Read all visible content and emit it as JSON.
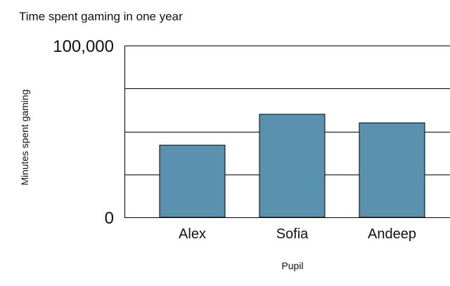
{
  "chart_data": {
    "type": "bar",
    "title": "Time spent gaming in one year",
    "xlabel": "Pupil",
    "ylabel": "Minutes spent gaming",
    "categories": [
      "Alex",
      "Sofia",
      "Andeep"
    ],
    "values": [
      42000,
      60000,
      55000
    ],
    "ylim": [
      0,
      100000
    ],
    "yticks_labeled": [
      "0",
      "100,000"
    ],
    "grid_values": [
      25000,
      50000,
      75000,
      100000
    ],
    "grid": true,
    "bar_color": "#5a91ae"
  }
}
